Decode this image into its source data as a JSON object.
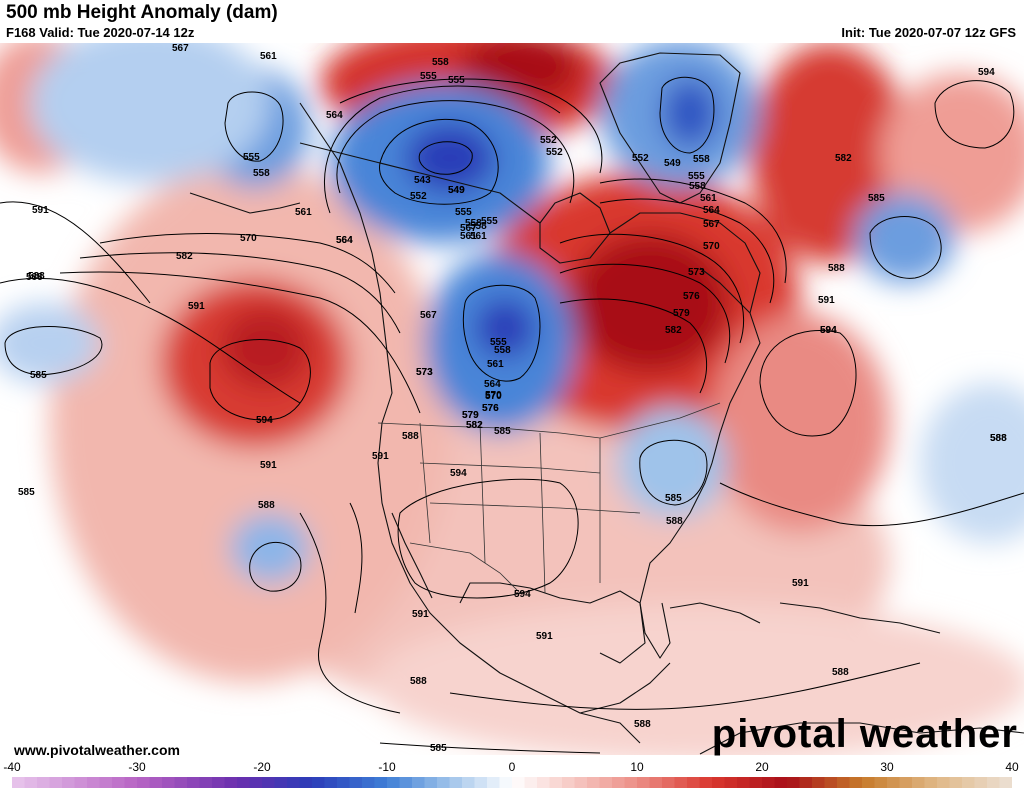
{
  "header": {
    "title": "500 mb Height Anomaly (dam)",
    "valid": "F168 Valid: Tue 2020-07-14 12z",
    "init": "Init: Tue 2020-07-07 12z GFS"
  },
  "footer": {
    "url": "www.pivotalweather.com",
    "brand": "pivotal weather"
  },
  "colorbar": {
    "ticks": [
      "-40",
      "-30",
      "-20",
      "-10",
      "0",
      "10",
      "20",
      "30",
      "40"
    ],
    "min": -40,
    "max": 40,
    "stops": [
      {
        "v": -40,
        "c": "#e8c6ec"
      },
      {
        "v": -30,
        "c": "#b864c4"
      },
      {
        "v": -22,
        "c": "#6a2fae"
      },
      {
        "v": -16,
        "c": "#2b3cb8"
      },
      {
        "v": -10,
        "c": "#3f7fd6"
      },
      {
        "v": -5,
        "c": "#9fc3ea"
      },
      {
        "v": 0,
        "c": "#ffffff"
      },
      {
        "v": 5,
        "c": "#f6c7c2"
      },
      {
        "v": 10,
        "c": "#ec8e86"
      },
      {
        "v": 16,
        "c": "#d9372f"
      },
      {
        "v": 22,
        "c": "#a80f18"
      },
      {
        "v": 28,
        "c": "#c77a2a"
      },
      {
        "v": 34,
        "c": "#e0b887"
      },
      {
        "v": 40,
        "c": "#ece0d4"
      }
    ]
  },
  "map": {
    "anomaly_centers": [
      {
        "name": "ridge-east-pacific",
        "sign": "positive"
      },
      {
        "name": "ridge-central-canada",
        "sign": "positive"
      },
      {
        "name": "ridge-western-atlantic",
        "sign": "positive"
      },
      {
        "name": "ridge-arctic",
        "sign": "positive"
      },
      {
        "name": "ridge-north-atlantic",
        "sign": "positive"
      },
      {
        "name": "ridge-southern-plains",
        "sign": "positive"
      },
      {
        "name": "trough-hudson-bay",
        "sign": "negative"
      },
      {
        "name": "trough-prairies",
        "sign": "negative"
      },
      {
        "name": "trough-greenland",
        "sign": "negative"
      },
      {
        "name": "trough-bering",
        "sign": "negative"
      },
      {
        "name": "trough-southeast-us",
        "sign": "negative"
      },
      {
        "name": "trough-central-atlantic",
        "sign": "negative"
      },
      {
        "name": "trough-north-pacific",
        "sign": "negative"
      },
      {
        "name": "trough-subtropical-pacific",
        "sign": "negative"
      }
    ],
    "contour_labels": [
      "567",
      "561",
      "558",
      "555",
      "552",
      "549",
      "555",
      "558",
      "561",
      "564",
      "567",
      "570",
      "573",
      "576",
      "579",
      "582",
      "555",
      "558",
      "561",
      "564",
      "570",
      "582",
      "588",
      "591",
      "594",
      "543",
      "549",
      "552",
      "555",
      "558",
      "561",
      "558",
      "555",
      "552",
      "549",
      "552",
      "555",
      "558",
      "561",
      "564",
      "567",
      "570",
      "573",
      "576",
      "579",
      "582",
      "567",
      "555",
      "558",
      "561",
      "564",
      "570",
      "573",
      "576",
      "579",
      "582",
      "585",
      "594",
      "582",
      "585",
      "588",
      "591",
      "594",
      "588",
      "585",
      "591",
      "585",
      "588",
      "591",
      "594",
      "588",
      "591",
      "594",
      "588",
      "585",
      "588",
      "594",
      "591",
      "591",
      "588",
      "588",
      "585",
      "591",
      "588",
      "588",
      "564"
    ]
  }
}
